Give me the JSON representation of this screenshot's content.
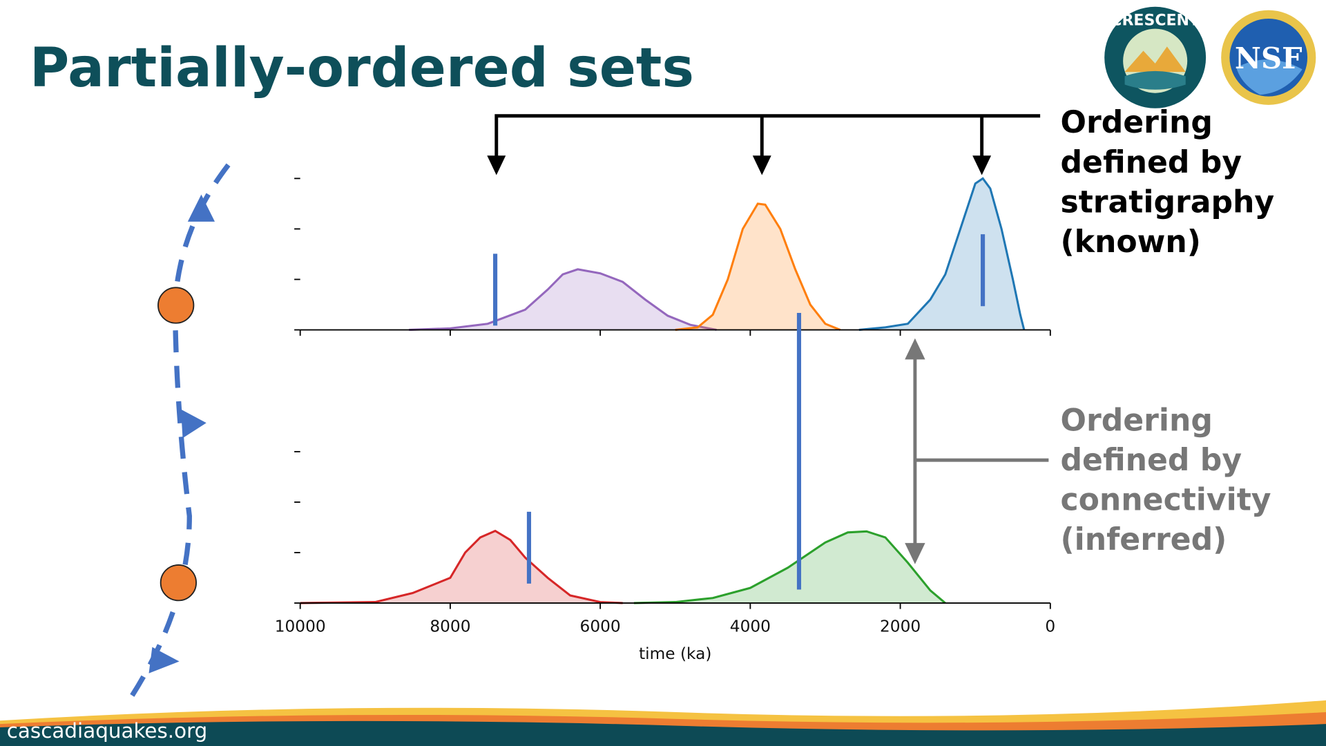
{
  "title": "Partially-ordered sets",
  "logos": [
    "CRESCENT",
    "NSF"
  ],
  "chart_data": [
    {
      "type": "area",
      "xlim": [
        10000,
        0
      ],
      "xticks": [
        10000,
        8000,
        6000,
        4000,
        2000,
        0
      ],
      "ylim": [
        0,
        3
      ],
      "yticks": [
        0,
        1,
        2,
        3
      ],
      "series": [
        {
          "color": "#9467bd",
          "x": [
            8550,
            8000,
            7500,
            7000,
            6700,
            6500,
            6300,
            6000,
            5700,
            5400,
            5100,
            4800,
            4450
          ],
          "values": [
            0,
            0.03,
            0.12,
            0.4,
            0.8,
            1.1,
            1.2,
            1.12,
            0.95,
            0.6,
            0.28,
            0.1,
            0
          ]
        },
        {
          "color": "#ff7f0e",
          "x": [
            5000,
            4700,
            4500,
            4300,
            4100,
            3900,
            3800,
            3600,
            3400,
            3200,
            3000,
            2800
          ],
          "values": [
            0,
            0.05,
            0.3,
            1.0,
            2.0,
            2.5,
            2.48,
            2.0,
            1.2,
            0.5,
            0.12,
            0
          ]
        },
        {
          "color": "#1f77b4",
          "x": [
            2550,
            2200,
            1900,
            1600,
            1400,
            1200,
            1000,
            900,
            800,
            650,
            500,
            400,
            350
          ],
          "values": [
            0,
            0.05,
            0.12,
            0.6,
            1.1,
            2.0,
            2.9,
            3.0,
            2.8,
            2.0,
            1.0,
            0.3,
            0
          ]
        }
      ],
      "markers": {
        "color": "#4472c4",
        "x": [
          7400,
          900
        ]
      }
    },
    {
      "type": "area",
      "xlim": [
        10000,
        0
      ],
      "xticks": [
        10000,
        8000,
        6000,
        4000,
        2000,
        0
      ],
      "ylim": [
        0,
        3
      ],
      "yticks": [
        0,
        1,
        2,
        3
      ],
      "xlabel": "time (ka)",
      "series": [
        {
          "color": "#d62728",
          "x": [
            10000,
            9000,
            8500,
            8000,
            7800,
            7600,
            7400,
            7200,
            7000,
            6700,
            6400,
            6000,
            5700
          ],
          "values": [
            0,
            0.02,
            0.2,
            0.5,
            1.0,
            1.3,
            1.43,
            1.25,
            0.9,
            0.5,
            0.15,
            0.02,
            0
          ]
        },
        {
          "color": "#2ca02c",
          "x": [
            5550,
            5000,
            4500,
            4000,
            3500,
            3000,
            2700,
            2450,
            2200,
            1900,
            1600,
            1400
          ],
          "values": [
            0,
            0.02,
            0.1,
            0.3,
            0.7,
            1.2,
            1.4,
            1.42,
            1.3,
            0.8,
            0.25,
            0
          ]
        }
      ],
      "markers": {
        "color": "#4472c4",
        "x": [
          6950,
          3350
        ]
      }
    }
  ],
  "annotations": [
    {
      "color": "#000000",
      "lines": [
        "Ordering",
        "defined by",
        "stratigraphy",
        "(known)"
      ]
    },
    {
      "color": "#777777",
      "lines": [
        "Ordering",
        "defined by",
        "connectivity",
        "(inferred)"
      ]
    }
  ],
  "footer": "cascadiaquakes.org"
}
